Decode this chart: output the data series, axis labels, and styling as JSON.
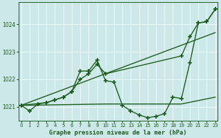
{
  "title": "Graphe pression niveau de la mer (hPa)",
  "bg_color": "#cce8e8",
  "line_color": "#1a5c1a",
  "xlim": [
    -0.3,
    23.3
  ],
  "ylim": [
    1020.5,
    1024.8
  ],
  "yticks": [
    1021,
    1022,
    1023,
    1024
  ],
  "xticks": [
    0,
    1,
    2,
    3,
    4,
    5,
    6,
    7,
    8,
    9,
    10,
    11,
    12,
    13,
    14,
    15,
    16,
    17,
    18,
    19,
    20,
    21,
    22,
    23
  ],
  "series_wavy": {
    "x": [
      0,
      1,
      2,
      3,
      4,
      5,
      6,
      7,
      8,
      9,
      10,
      11,
      12,
      13,
      14,
      15,
      16,
      17,
      18,
      19,
      20,
      21,
      22,
      23
    ],
    "y": [
      1021.05,
      1020.85,
      1021.1,
      1021.15,
      1021.25,
      1021.35,
      1021.55,
      1022.3,
      1022.3,
      1022.7,
      1021.95,
      1021.9,
      1021.05,
      1020.85,
      1020.7,
      1020.6,
      1020.65,
      1020.75,
      1021.35,
      1021.3,
      1022.6,
      1024.05,
      1024.1,
      1024.55
    ]
  },
  "series_diagonal": {
    "x": [
      0,
      3,
      4,
      5,
      6,
      7,
      8,
      9,
      10,
      19,
      20,
      21,
      22,
      23
    ],
    "y": [
      1021.05,
      1021.15,
      1021.25,
      1021.35,
      1021.55,
      1022.0,
      1022.2,
      1022.55,
      1022.2,
      1022.85,
      1023.55,
      1024.05,
      1024.1,
      1024.55
    ]
  },
  "series_linear1": {
    "x": [
      0,
      23
    ],
    "y": [
      1021.05,
      1023.7
    ]
  },
  "series_linear2": {
    "x": [
      0,
      10,
      19,
      23
    ],
    "y": [
      1021.05,
      1021.1,
      1021.1,
      1021.35
    ]
  }
}
